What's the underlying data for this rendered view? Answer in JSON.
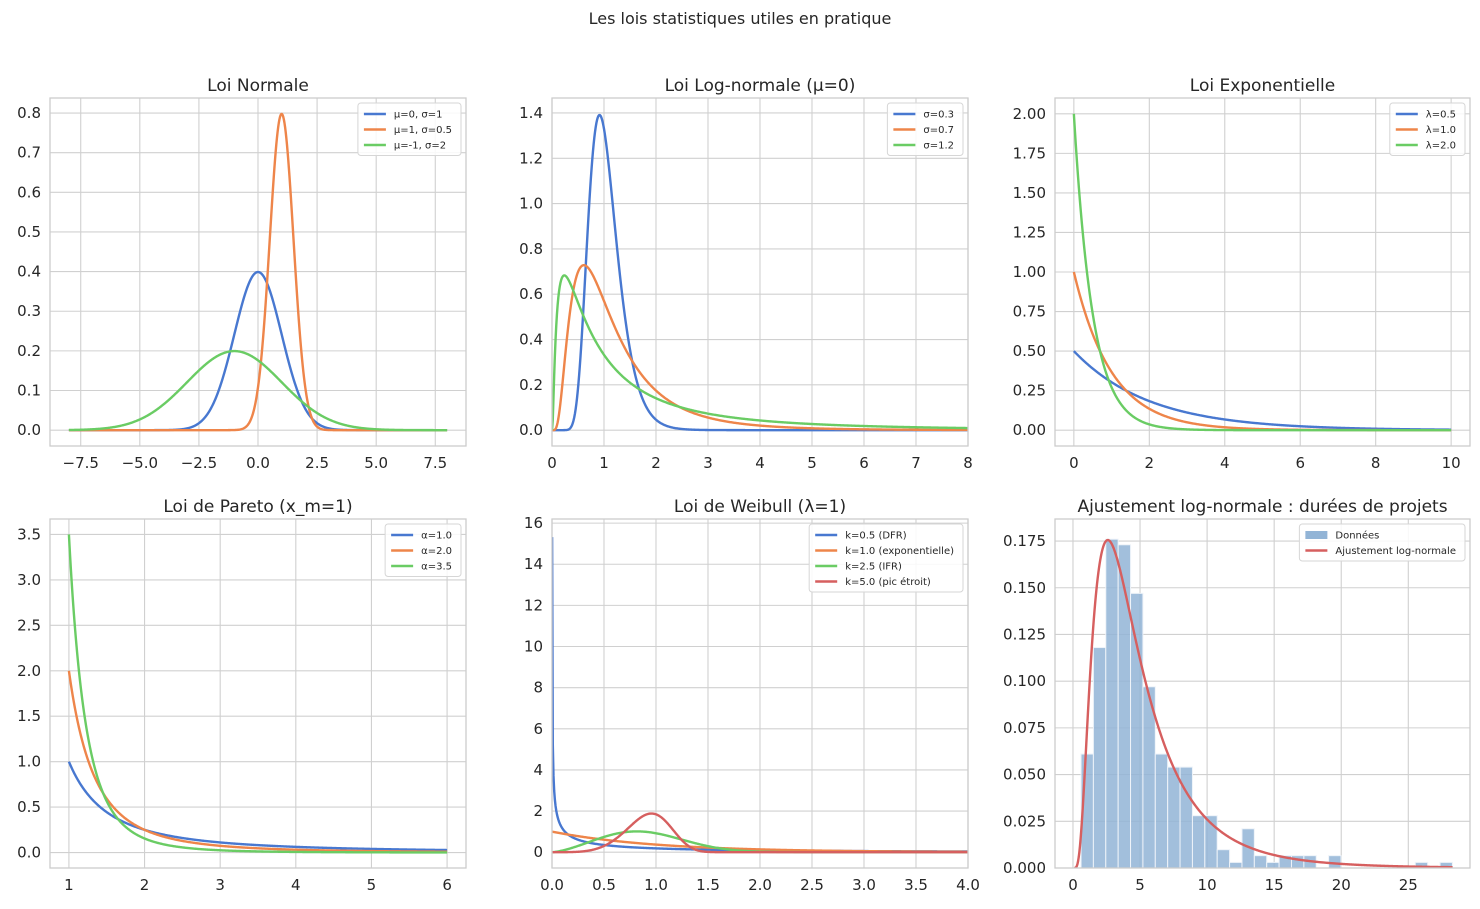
{
  "suptitle": "Les lois statistiques utiles en pratique",
  "colors": {
    "blue": "#4878d0",
    "orange": "#ee854a",
    "green": "#6acc64",
    "red": "#d65f5f",
    "hist": "#92b4d6"
  },
  "chart_data": [
    {
      "type": "line",
      "title": "Loi Normale",
      "xlim": [
        -8.8,
        8.8
      ],
      "ylim": [
        -0.04,
        0.838
      ],
      "grid": true,
      "legend": "top-right",
      "xticks": [
        -7.5,
        -5,
        -2.5,
        0,
        2.5,
        5,
        7.5
      ],
      "xtick_labels": [
        "−7.5",
        "−5.0",
        "−2.5",
        "0.0",
        "2.5",
        "5.0",
        "7.5"
      ],
      "yticks": [
        0,
        0.1,
        0.2,
        0.3,
        0.4,
        0.5,
        0.6,
        0.7,
        0.8
      ],
      "ytick_labels": [
        "0.0",
        "0.1",
        "0.2",
        "0.3",
        "0.4",
        "0.5",
        "0.6",
        "0.7",
        "0.8"
      ],
      "series": [
        {
          "name": "μ=0, σ=1",
          "dist": "normal",
          "mu": 0,
          "sigma": 1,
          "x": [
            -8,
            8
          ],
          "color": "#4878d0"
        },
        {
          "name": "μ=1, σ=0.5",
          "dist": "normal",
          "mu": 1,
          "sigma": 0.5,
          "x": [
            -8,
            8
          ],
          "color": "#ee854a"
        },
        {
          "name": "μ=-1, σ=2",
          "dist": "normal",
          "mu": -1,
          "sigma": 2,
          "x": [
            -8,
            8
          ],
          "color": "#6acc64"
        }
      ]
    },
    {
      "type": "line",
      "title": "Loi Log-normale (μ=0)",
      "xlim": [
        0,
        8
      ],
      "ylim": [
        -0.07,
        1.466
      ],
      "grid": true,
      "legend": "top-right",
      "xticks": [
        0,
        1,
        2,
        3,
        4,
        5,
        6,
        7,
        8
      ],
      "xtick_labels": [
        "0",
        "1",
        "2",
        "3",
        "4",
        "5",
        "6",
        "7",
        "8"
      ],
      "yticks": [
        0,
        0.2,
        0.4,
        0.6,
        0.8,
        1.0,
        1.2,
        1.4
      ],
      "ytick_labels": [
        "0.0",
        "0.2",
        "0.4",
        "0.6",
        "0.8",
        "1.0",
        "1.2",
        "1.4"
      ],
      "series": [
        {
          "name": "σ=0.3",
          "dist": "lognormal",
          "mu": 0,
          "sigma": 0.3,
          "x": [
            0.001,
            8
          ],
          "color": "#4878d0"
        },
        {
          "name": "σ=0.7",
          "dist": "lognormal",
          "mu": 0,
          "sigma": 0.7,
          "x": [
            0.001,
            8
          ],
          "color": "#ee854a"
        },
        {
          "name": "σ=1.2",
          "dist": "lognormal",
          "mu": 0,
          "sigma": 1.2,
          "x": [
            0.001,
            8
          ],
          "color": "#6acc64"
        }
      ]
    },
    {
      "type": "line",
      "title": "Loi Exponentielle",
      "xlim": [
        -0.5,
        10.5
      ],
      "ylim": [
        -0.1,
        2.1
      ],
      "grid": true,
      "legend": "top-right",
      "xticks": [
        0,
        2,
        4,
        6,
        8,
        10
      ],
      "xtick_labels": [
        "0",
        "2",
        "4",
        "6",
        "8",
        "10"
      ],
      "yticks": [
        0,
        0.25,
        0.5,
        0.75,
        1.0,
        1.25,
        1.5,
        1.75,
        2.0
      ],
      "ytick_labels": [
        "0.00",
        "0.25",
        "0.50",
        "0.75",
        "1.00",
        "1.25",
        "1.50",
        "1.75",
        "2.00"
      ],
      "series": [
        {
          "name": "λ=0.5",
          "dist": "expon",
          "lambda": 0.5,
          "x": [
            0,
            10
          ],
          "color": "#4878d0"
        },
        {
          "name": "λ=1.0",
          "dist": "expon",
          "lambda": 1.0,
          "x": [
            0,
            10
          ],
          "color": "#ee854a"
        },
        {
          "name": "λ=2.0",
          "dist": "expon",
          "lambda": 2.0,
          "x": [
            0,
            10
          ],
          "color": "#6acc64"
        }
      ]
    },
    {
      "type": "line",
      "title": "Loi de Pareto (x_m=1)",
      "xlim": [
        0.75,
        6.25
      ],
      "ylim": [
        -0.17,
        3.67
      ],
      "grid": true,
      "legend": "top-right",
      "xticks": [
        1,
        2,
        3,
        4,
        5,
        6
      ],
      "xtick_labels": [
        "1",
        "2",
        "3",
        "4",
        "5",
        "6"
      ],
      "yticks": [
        0,
        0.5,
        1.0,
        1.5,
        2.0,
        2.5,
        3.0,
        3.5
      ],
      "ytick_labels": [
        "0.0",
        "0.5",
        "1.0",
        "1.5",
        "2.0",
        "2.5",
        "3.0",
        "3.5"
      ],
      "series": [
        {
          "name": "α=1.0",
          "dist": "pareto",
          "alpha": 1.0,
          "xm": 1,
          "x": [
            1,
            6
          ],
          "color": "#4878d0"
        },
        {
          "name": "α=2.0",
          "dist": "pareto",
          "alpha": 2.0,
          "xm": 1,
          "x": [
            1,
            6
          ],
          "color": "#ee854a"
        },
        {
          "name": "α=3.5",
          "dist": "pareto",
          "alpha": 3.5,
          "xm": 1,
          "x": [
            1,
            6
          ],
          "color": "#6acc64"
        }
      ]
    },
    {
      "type": "line",
      "title": "Loi de Weibull (λ=1)",
      "xlim": [
        0,
        4
      ],
      "ylim": [
        -0.77,
        16.2
      ],
      "grid": true,
      "legend": "top-right",
      "xticks": [
        0,
        0.5,
        1,
        1.5,
        2,
        2.5,
        3,
        3.5,
        4
      ],
      "xtick_labels": [
        "0.0",
        "0.5",
        "1.0",
        "1.5",
        "2.0",
        "2.5",
        "3.0",
        "3.5",
        "4.0"
      ],
      "yticks": [
        0,
        2,
        4,
        6,
        8,
        10,
        12,
        14,
        16
      ],
      "ytick_labels": [
        "0",
        "2",
        "4",
        "6",
        "8",
        "10",
        "12",
        "14",
        "16"
      ],
      "series": [
        {
          "name": "k=0.5 (DFR)",
          "dist": "weibull",
          "k": 0.5,
          "lambda": 1,
          "x": [
            0.001,
            4
          ],
          "color": "#4878d0"
        },
        {
          "name": "k=1.0 (exponentielle)",
          "dist": "weibull",
          "k": 1.0,
          "lambda": 1,
          "x": [
            0.001,
            4
          ],
          "color": "#ee854a"
        },
        {
          "name": "k=2.5 (IFR)",
          "dist": "weibull",
          "k": 2.5,
          "lambda": 1,
          "x": [
            0.001,
            4
          ],
          "color": "#6acc64"
        },
        {
          "name": "k=5.0 (pic étroit)",
          "dist": "weibull",
          "k": 5.0,
          "lambda": 1,
          "x": [
            0.001,
            4
          ],
          "color": "#d65f5f"
        }
      ]
    },
    {
      "type": "bar+line",
      "title": "Ajustement log-normale : durées de projets",
      "xlim": [
        -1.34,
        29.6
      ],
      "ylim": [
        0,
        0.1868
      ],
      "grid": true,
      "legend": "top-right",
      "xticks": [
        0,
        5,
        10,
        15,
        20,
        25
      ],
      "xtick_labels": [
        "0",
        "5",
        "10",
        "15",
        "20",
        "25"
      ],
      "yticks": [
        0,
        0.025,
        0.05,
        0.075,
        0.1,
        0.125,
        0.15,
        0.175
      ],
      "ytick_labels": [
        "0.000",
        "0.025",
        "0.050",
        "0.075",
        "0.100",
        "0.125",
        "0.150",
        "0.175"
      ],
      "histogram": {
        "name": "Données",
        "bin_start": 0.6,
        "bin_width": 0.923,
        "color": "#92b4d6",
        "values": [
          0.061,
          0.118,
          0.176,
          0.173,
          0.147,
          0.097,
          0.061,
          0.054,
          0.054,
          0.028,
          0.028,
          0.0098,
          0.003,
          0.021,
          0.0066,
          0.003,
          0.0066,
          0.0066,
          0.0066,
          0,
          0.0066,
          0,
          0,
          0,
          0,
          0,
          0,
          0.003,
          0,
          0.003
        ]
      },
      "series": [
        {
          "name": "Ajustement log-normale",
          "dist": "lognormal",
          "mu": 1.43,
          "sigma": 0.69,
          "x": [
            0.1,
            28.3
          ],
          "color": "#d65f5f"
        }
      ]
    }
  ]
}
